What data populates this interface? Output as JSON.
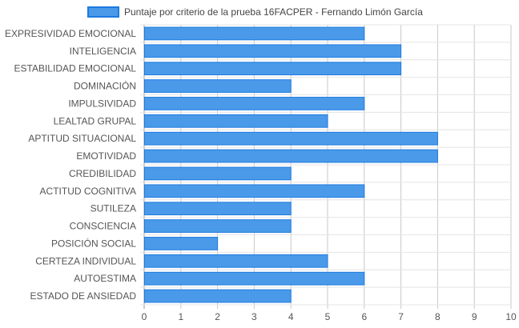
{
  "chart_data": {
    "type": "bar",
    "orientation": "horizontal",
    "title": "",
    "xlabel": "",
    "ylabel": "",
    "legend_position": "top-center",
    "grid": true,
    "xlim": [
      0,
      10
    ],
    "x_ticks": [
      "0",
      "1",
      "2",
      "3",
      "4",
      "5",
      "6",
      "7",
      "8",
      "9",
      "10"
    ],
    "categories": [
      "EXPRESIVIDAD EMOCIONAL",
      "INTELIGENCIA",
      "ESTABILIDAD EMOCIONAL",
      "DOMINACIÓN",
      "IMPULSIVIDAD",
      "LEALTAD GRUPAL",
      "APTITUD SITUACIONAL",
      "EMOTIVIDAD",
      "CREDIBILIDAD",
      "ACTITUD COGNITIVA",
      "SUTILEZA",
      "CONSCIENCIA",
      "POSICIÓN SOCIAL",
      "CERTEZA INDIVIDUAL",
      "AUTOESTIMA",
      "ESTADO DE ANSIEDAD"
    ],
    "series": [
      {
        "name": "Puntaje por criterio de la prueba 16FACPER - Fernando Limón García",
        "values": [
          6,
          7,
          7,
          4,
          6,
          5,
          8,
          8,
          4,
          6,
          4,
          4,
          2,
          5,
          6,
          4
        ],
        "color": "#4a9ae9",
        "border_color": "#1e7ae0"
      }
    ]
  }
}
